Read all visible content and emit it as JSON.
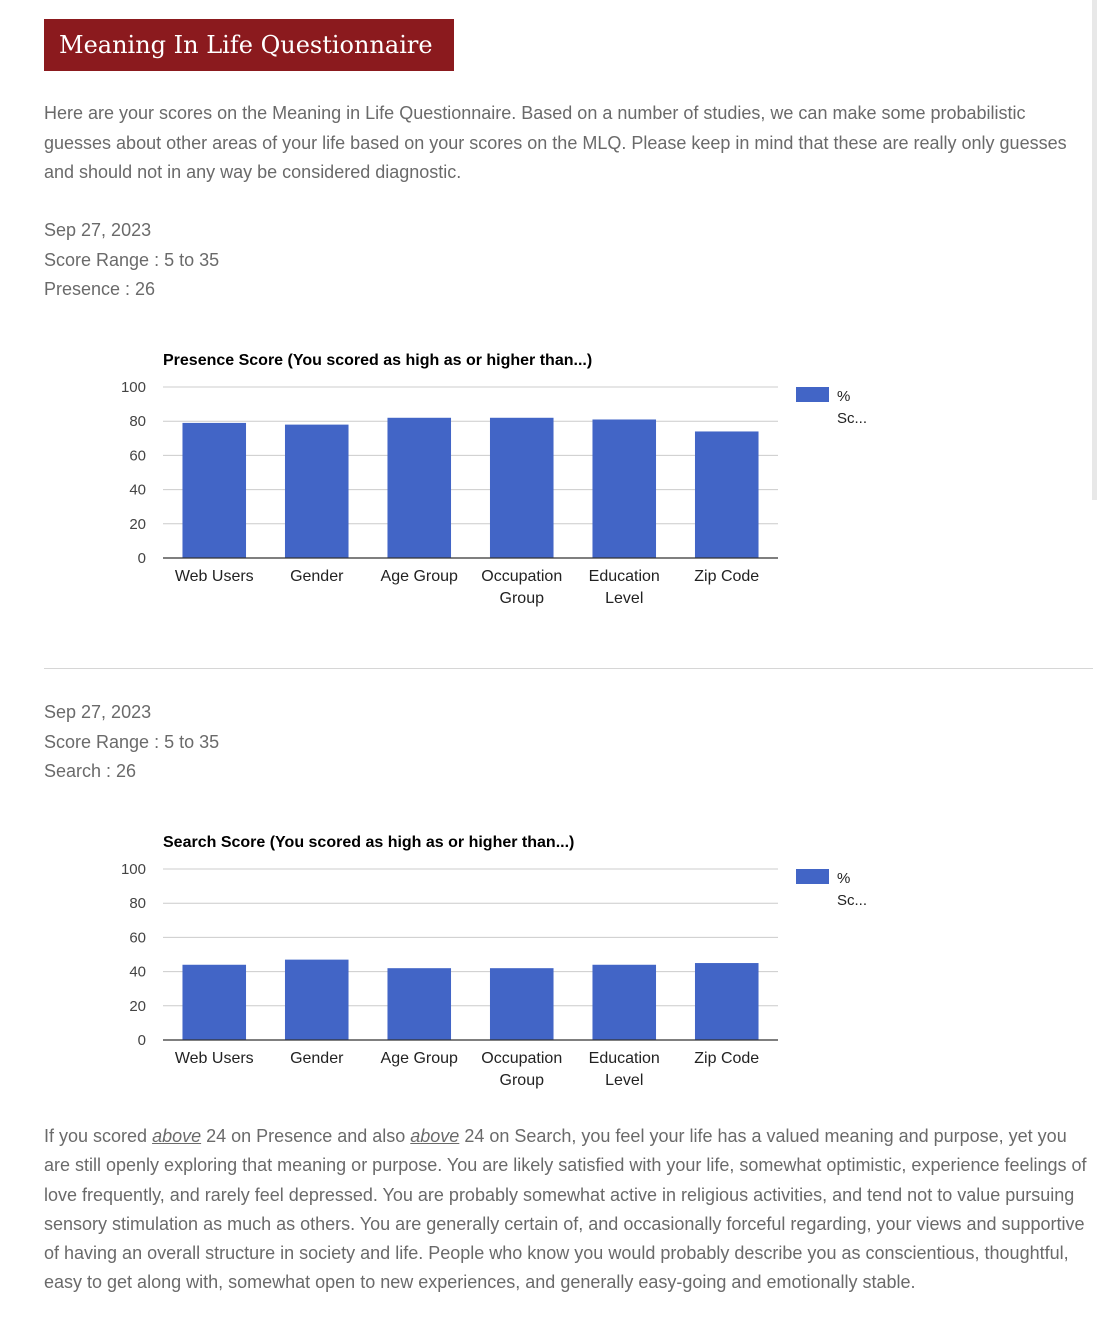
{
  "page": {
    "title": "Meaning In Life Questionnaire",
    "intro": "Here are your scores on the Meaning in Life Questionnaire. Based on a number of studies, we can make some probabilistic guesses about other areas of your life based on your scores on the MLQ. Please keep in mind that these are really only guesses and should not in any way be considered diagnostic."
  },
  "sections": [
    {
      "date": "Sep 27, 2023",
      "score_range": "Score Range : 5 to 35",
      "score_line": "Presence : 26"
    },
    {
      "date": "Sep 27, 2023",
      "score_range": "Score Range : 5 to 35",
      "score_line": "Search : 26"
    }
  ],
  "chart_data": [
    {
      "type": "bar",
      "title": "Presence Score (You scored as high as or higher than...)",
      "categories": [
        [
          "Web Users"
        ],
        [
          "Gender"
        ],
        [
          "Age Group"
        ],
        [
          "Occupation",
          "Group"
        ],
        [
          "Education",
          "Level"
        ],
        [
          "Zip Code"
        ]
      ],
      "series": [
        {
          "name": "% Sc...",
          "values": [
            79,
            78,
            82,
            82,
            81,
            74
          ]
        }
      ],
      "ylim": [
        0,
        100
      ],
      "yticks": [
        0,
        20,
        40,
        60,
        80,
        100
      ],
      "grid": true,
      "legend": "right",
      "color": "#4265c6"
    },
    {
      "type": "bar",
      "title": "Search Score (You scored as high as or higher than...)",
      "categories": [
        [
          "Web Users"
        ],
        [
          "Gender"
        ],
        [
          "Age Group"
        ],
        [
          "Occupation",
          "Group"
        ],
        [
          "Education",
          "Level"
        ],
        [
          "Zip Code"
        ]
      ],
      "series": [
        {
          "name": "% Sc...",
          "values": [
            44,
            47,
            42,
            42,
            44,
            45
          ]
        }
      ],
      "ylim": [
        0,
        100
      ],
      "yticks": [
        0,
        20,
        40,
        60,
        80,
        100
      ],
      "grid": true,
      "legend": "right",
      "color": "#4265c6"
    }
  ],
  "summary": {
    "p1": "If you scored ",
    "above1": "above",
    "p2": " 24 on Presence and also ",
    "above2": "above",
    "p3": " 24 on Search, you feel your life has a valued meaning and purpose, yet you are still openly exploring that meaning or purpose. You are likely satisfied with your life, somewhat optimistic, experience feelings of love frequently, and rarely feel depressed. You are probably somewhat active in religious activities, and tend not to value pursuing sensory stimulation as much as others. You are generally certain of, and occasionally forceful regarding, your views and supportive of having an overall structure in society and life. People who know you would probably describe you as conscientious, thoughtful, easy to get along with, somewhat open to new experiences, and generally easy-going and emotionally stable."
  }
}
